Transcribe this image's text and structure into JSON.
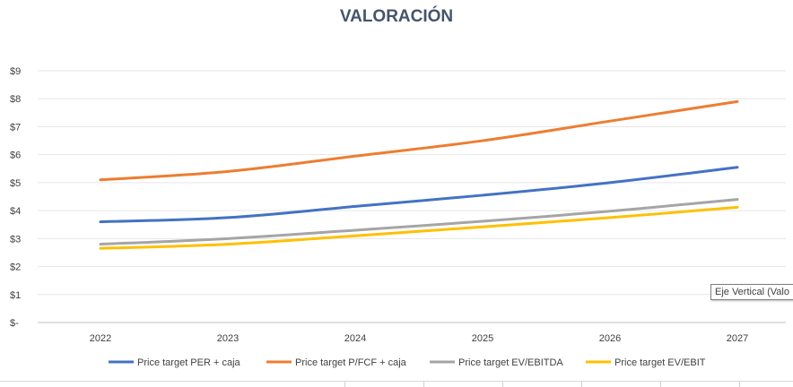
{
  "chart_data": {
    "type": "line",
    "title": "VALORACIÓN",
    "categories": [
      "2022",
      "2023",
      "2024",
      "2025",
      "2026",
      "2027"
    ],
    "y_tick_labels": [
      "$-",
      "$1",
      "$2",
      "$3",
      "$4",
      "$5",
      "$6",
      "$7",
      "$8",
      "$9"
    ],
    "ylim": [
      0,
      9
    ],
    "grid": true,
    "legend_position": "bottom",
    "series": [
      {
        "name": "Price target  PER + caja",
        "color": "#4472c4",
        "values": [
          3.6,
          3.75,
          4.15,
          4.55,
          5.0,
          5.55
        ]
      },
      {
        "name": "Price target  P/FCF + caja",
        "color": "#ed7d31",
        "values": [
          5.1,
          5.4,
          5.95,
          6.5,
          7.2,
          7.9
        ]
      },
      {
        "name": "Price target  EV/EBITDA",
        "color": "#a5a5a5",
        "values": [
          2.8,
          3.0,
          3.3,
          3.62,
          3.98,
          4.4
        ]
      },
      {
        "name": "Price target  EV/EBIT",
        "color": "#ffc000",
        "values": [
          2.65,
          2.8,
          3.1,
          3.42,
          3.75,
          4.12
        ]
      }
    ]
  },
  "tooltip": {
    "text": "Eje Vertical (Valo"
  }
}
